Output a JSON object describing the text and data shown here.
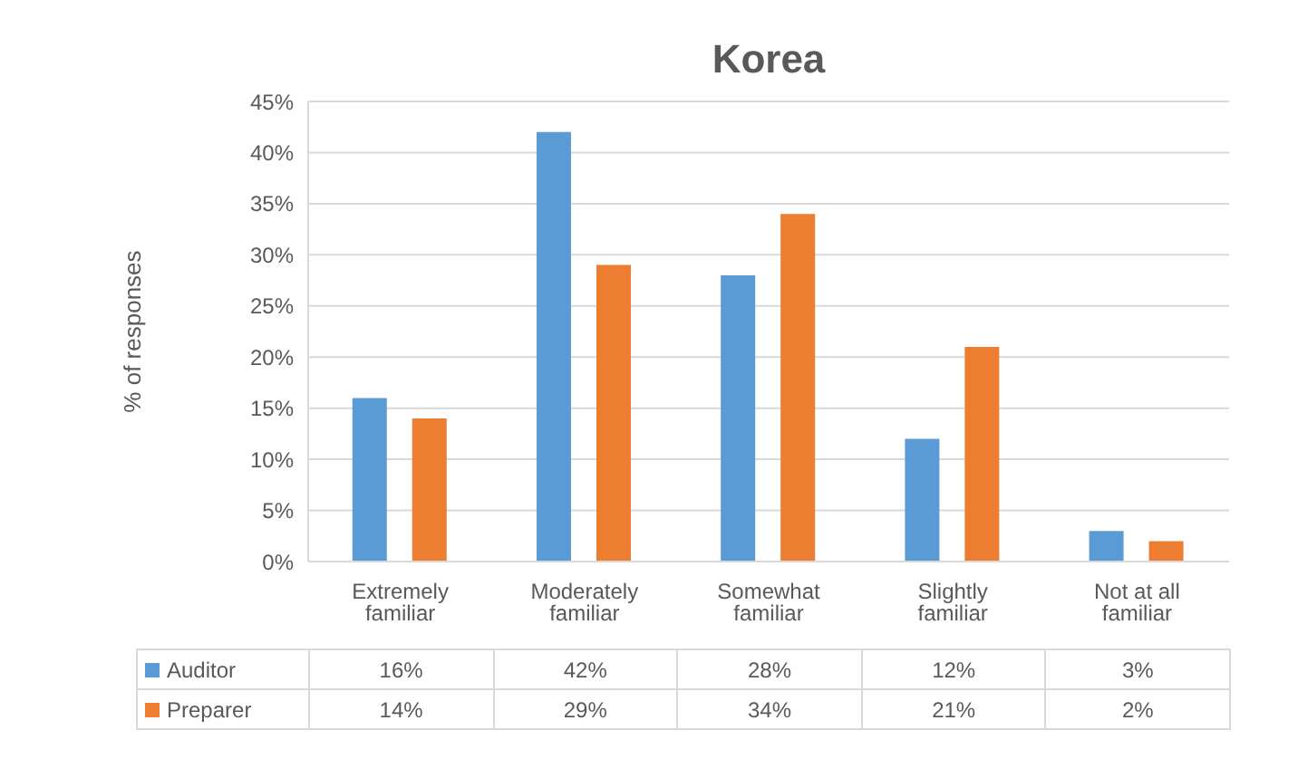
{
  "chart_data": {
    "type": "bar",
    "title": "Korea",
    "ylabel": "% of responses",
    "categories": [
      "Extremely familiar",
      "Moderately familiar",
      "Somewhat familiar",
      "Slightly familiar",
      "Not at all familiar"
    ],
    "series": [
      {
        "name": "Auditor",
        "color": "#5b9bd5",
        "values": [
          16,
          42,
          28,
          12,
          3
        ],
        "value_labels": [
          "16%",
          "42%",
          "28%",
          "12%",
          "3%"
        ]
      },
      {
        "name": "Preparer",
        "color": "#ed7d31",
        "values": [
          14,
          29,
          34,
          21,
          2
        ],
        "value_labels": [
          "14%",
          "29%",
          "34%",
          "21%",
          "2%"
        ]
      }
    ],
    "ylim": [
      0,
      45
    ],
    "yticks": [
      {
        "value": 0,
        "label": "0%"
      },
      {
        "value": 5,
        "label": "5%"
      },
      {
        "value": 10,
        "label": "10%"
      },
      {
        "value": 15,
        "label": "15%"
      },
      {
        "value": 20,
        "label": "20%"
      },
      {
        "value": 25,
        "label": "25%"
      },
      {
        "value": 30,
        "label": "30%"
      },
      {
        "value": 35,
        "label": "35%"
      },
      {
        "value": 40,
        "label": "40%"
      },
      {
        "value": 45,
        "label": "45%"
      }
    ],
    "grid": "y",
    "legend": "bottom"
  }
}
